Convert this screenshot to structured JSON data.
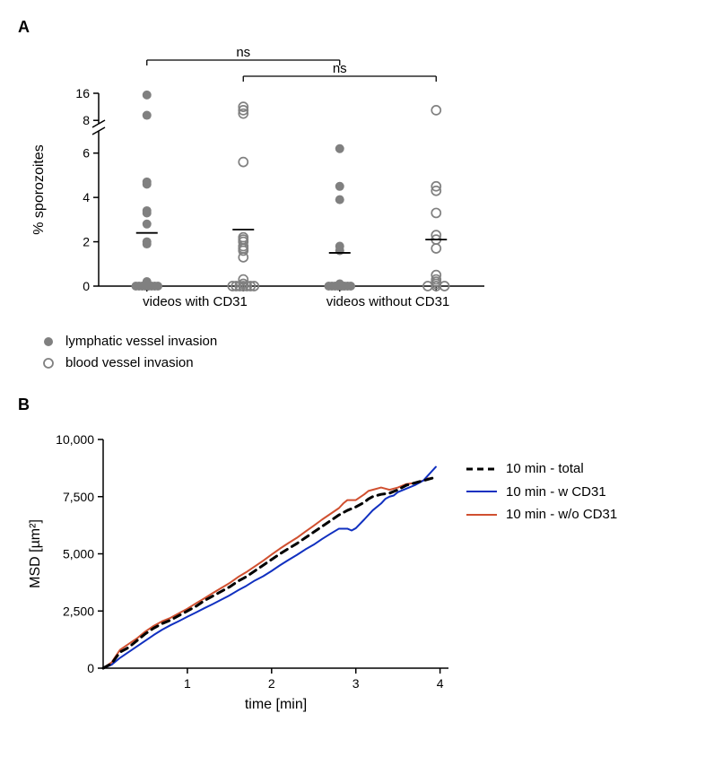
{
  "panelA": {
    "label": "A",
    "type": "scatter",
    "ylabel": "% sporozoites",
    "ylabel_fontsize": 16,
    "axis_color": "#000000",
    "tick_fontsize": 14,
    "background_color": "#ffffff",
    "lower": {
      "ylim": [
        0,
        7
      ],
      "yticks": [
        0,
        2,
        4,
        6
      ]
    },
    "upper": {
      "ylim": [
        7,
        16
      ],
      "yticks": [
        8,
        16
      ]
    },
    "x_categories": [
      "videos with CD31",
      "videos without CD31"
    ],
    "x_fontsize": 15,
    "sig_bars": [
      {
        "from": 0,
        "to": 2,
        "label": "ns"
      },
      {
        "from": 1,
        "to": 3,
        "label": "ns"
      }
    ],
    "sig_fontsize": 15,
    "sig_color": "#000000",
    "groups": [
      {
        "col": 0,
        "marker": "filled",
        "mean": 2.4,
        "points": [
          0,
          0,
          0,
          0,
          0,
          0,
          0,
          0,
          0.1,
          0.2,
          1.9,
          2.0,
          2.8,
          3.3,
          3.4,
          4.6,
          4.7,
          9.5,
          15.5
        ]
      },
      {
        "col": 1,
        "marker": "open",
        "mean": 2.55,
        "points": [
          0,
          0,
          0,
          0,
          0,
          0,
          0,
          0.1,
          0.3,
          1.3,
          1.6,
          1.7,
          1.8,
          2.0,
          2.1,
          2.2,
          5.6,
          10.0,
          11.0,
          12.0
        ]
      },
      {
        "col": 2,
        "marker": "filled",
        "mean": 1.5,
        "points": [
          0,
          0,
          0,
          0,
          0,
          0,
          0,
          0,
          0.1,
          1.6,
          1.8,
          3.9,
          4.5,
          6.2
        ]
      },
      {
        "col": 3,
        "marker": "open",
        "mean": 2.1,
        "points": [
          0,
          0,
          0,
          0.1,
          0.2,
          0.3,
          0.5,
          1.7,
          2.1,
          2.3,
          3.3,
          4.3,
          4.5,
          11.0
        ]
      }
    ],
    "marker_color": "#808080",
    "marker_radius": 5,
    "mean_line_color": "#000000",
    "mean_line_halfwidth": 12,
    "legend": [
      {
        "marker": "filled",
        "label": "lymphatic vessel invasion"
      },
      {
        "marker": "open",
        "label": "blood vessel invasion"
      }
    ],
    "legend_fontsize": 15
  },
  "panelB": {
    "label": "B",
    "type": "line",
    "xlabel": "time [min]",
    "ylabel": "MSD [µm²]",
    "label_fontsize": 16,
    "tick_fontsize": 14,
    "axis_color": "#000000",
    "background_color": "#ffffff",
    "xlim": [
      0,
      4.1
    ],
    "ylim": [
      0,
      10000
    ],
    "xticks": [
      1,
      2,
      3,
      4
    ],
    "yticks": [
      0,
      2500,
      5000,
      7500,
      10000
    ],
    "ytick_labels": [
      "0",
      "2,500",
      "5,000",
      "7,500",
      "10,000"
    ],
    "series": [
      {
        "name": "10 min - total",
        "color": "#000000",
        "width": 3,
        "dash": "8,6",
        "points": [
          [
            0,
            0
          ],
          [
            0.1,
            200
          ],
          [
            0.2,
            700
          ],
          [
            0.3,
            900
          ],
          [
            0.4,
            1200
          ],
          [
            0.5,
            1500
          ],
          [
            0.6,
            1750
          ],
          [
            0.7,
            1950
          ],
          [
            0.8,
            2100
          ],
          [
            0.9,
            2300
          ],
          [
            1.0,
            2500
          ],
          [
            1.1,
            2700
          ],
          [
            1.2,
            2950
          ],
          [
            1.3,
            3150
          ],
          [
            1.4,
            3350
          ],
          [
            1.5,
            3550
          ],
          [
            1.6,
            3800
          ],
          [
            1.7,
            4000
          ],
          [
            1.8,
            4250
          ],
          [
            1.9,
            4500
          ],
          [
            2.0,
            4750
          ],
          [
            2.1,
            5000
          ],
          [
            2.2,
            5230
          ],
          [
            2.3,
            5450
          ],
          [
            2.4,
            5700
          ],
          [
            2.5,
            5950
          ],
          [
            2.6,
            6200
          ],
          [
            2.7,
            6450
          ],
          [
            2.8,
            6700
          ],
          [
            2.9,
            6900
          ],
          [
            3.0,
            7050
          ],
          [
            3.1,
            7250
          ],
          [
            3.15,
            7400
          ],
          [
            3.2,
            7500
          ],
          [
            3.3,
            7600
          ],
          [
            3.4,
            7650
          ],
          [
            3.5,
            7800
          ],
          [
            3.6,
            8000
          ],
          [
            3.7,
            8100
          ],
          [
            3.8,
            8200
          ],
          [
            3.9,
            8300
          ],
          [
            3.95,
            8350
          ]
        ]
      },
      {
        "name": "10 min - w CD31",
        "color": "#1030c0",
        "width": 2,
        "dash": "",
        "points": [
          [
            0,
            0
          ],
          [
            0.1,
            150
          ],
          [
            0.2,
            450
          ],
          [
            0.3,
            700
          ],
          [
            0.4,
            950
          ],
          [
            0.5,
            1200
          ],
          [
            0.6,
            1450
          ],
          [
            0.7,
            1680
          ],
          [
            0.8,
            1880
          ],
          [
            0.9,
            2060
          ],
          [
            1.0,
            2250
          ],
          [
            1.1,
            2430
          ],
          [
            1.2,
            2620
          ],
          [
            1.3,
            2800
          ],
          [
            1.4,
            2990
          ],
          [
            1.5,
            3180
          ],
          [
            1.6,
            3400
          ],
          [
            1.7,
            3600
          ],
          [
            1.8,
            3830
          ],
          [
            1.9,
            4020
          ],
          [
            2.0,
            4250
          ],
          [
            2.1,
            4500
          ],
          [
            2.2,
            4730
          ],
          [
            2.3,
            4950
          ],
          [
            2.4,
            5190
          ],
          [
            2.5,
            5400
          ],
          [
            2.6,
            5650
          ],
          [
            2.7,
            5880
          ],
          [
            2.8,
            6100
          ],
          [
            2.9,
            6100
          ],
          [
            2.95,
            6020
          ],
          [
            3.0,
            6120
          ],
          [
            3.1,
            6500
          ],
          [
            3.2,
            6900
          ],
          [
            3.3,
            7200
          ],
          [
            3.35,
            7400
          ],
          [
            3.4,
            7500
          ],
          [
            3.45,
            7550
          ],
          [
            3.5,
            7700
          ],
          [
            3.6,
            7850
          ],
          [
            3.7,
            8000
          ],
          [
            3.8,
            8200
          ],
          [
            3.85,
            8400
          ],
          [
            3.9,
            8600
          ],
          [
            3.95,
            8800
          ]
        ]
      },
      {
        "name": "10 min - w/o CD31",
        "color": "#d05030",
        "width": 2,
        "dash": "",
        "points": [
          [
            0,
            0
          ],
          [
            0.1,
            250
          ],
          [
            0.2,
            800
          ],
          [
            0.3,
            1050
          ],
          [
            0.4,
            1300
          ],
          [
            0.5,
            1600
          ],
          [
            0.6,
            1850
          ],
          [
            0.7,
            2050
          ],
          [
            0.8,
            2200
          ],
          [
            0.9,
            2400
          ],
          [
            1.0,
            2600
          ],
          [
            1.1,
            2830
          ],
          [
            1.2,
            3050
          ],
          [
            1.3,
            3280
          ],
          [
            1.4,
            3500
          ],
          [
            1.5,
            3720
          ],
          [
            1.6,
            3980
          ],
          [
            1.7,
            4200
          ],
          [
            1.8,
            4450
          ],
          [
            1.9,
            4700
          ],
          [
            2.0,
            4970
          ],
          [
            2.1,
            5230
          ],
          [
            2.2,
            5470
          ],
          [
            2.3,
            5700
          ],
          [
            2.4,
            5970
          ],
          [
            2.5,
            6230
          ],
          [
            2.6,
            6500
          ],
          [
            2.7,
            6750
          ],
          [
            2.8,
            7000
          ],
          [
            2.85,
            7200
          ],
          [
            2.9,
            7350
          ],
          [
            3.0,
            7350
          ],
          [
            3.1,
            7600
          ],
          [
            3.15,
            7750
          ],
          [
            3.2,
            7800
          ],
          [
            3.3,
            7900
          ],
          [
            3.35,
            7850
          ],
          [
            3.4,
            7800
          ],
          [
            3.5,
            7900
          ],
          [
            3.6,
            8050
          ],
          [
            3.7,
            8100
          ],
          [
            3.8,
            8200
          ],
          [
            3.85,
            8300
          ],
          [
            3.9,
            8300
          ]
        ]
      }
    ],
    "legend_fontsize": 15
  }
}
